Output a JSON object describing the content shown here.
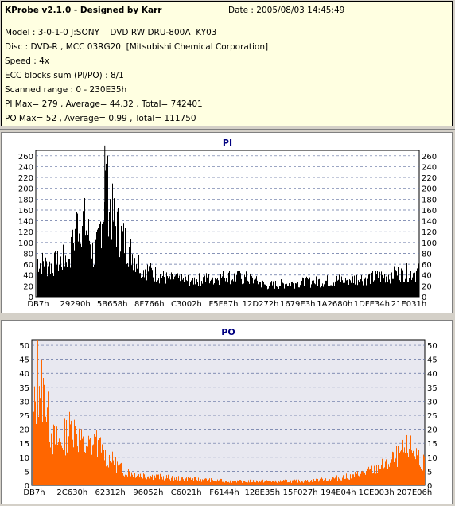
{
  "info": {
    "title": "KProbe v2.1.0 - Designed by Karr",
    "date": "Date : 2005/08/03 14:45:49",
    "lines": [
      "Model : 3-0-1-0 J:SONY    DVD RW DRU-800A  KY03",
      "Disc : DVD-R , MCC 03RG20  [Mitsubishi Chemical Corporation]",
      "Speed : 4x",
      "ECC blocks sum (PI/PO) : 8/1",
      "Scanned range : 0 - 230E35h",
      "PI Max= 279 , Average= 44.32 , Total= 742401",
      "PO Max= 52 , Average= 0.99 , Total= 111750"
    ]
  },
  "colors": {
    "pi_bars": "#000000",
    "po_bars": "#ff6600",
    "po_bg": "#e8e8f0",
    "title": "#000080"
  },
  "chart_data": [
    {
      "type": "bar",
      "title": "PI",
      "grid": true,
      "ylim": [
        0,
        270
      ],
      "yticks": [
        0,
        20,
        40,
        60,
        80,
        100,
        120,
        140,
        160,
        180,
        200,
        220,
        240,
        260
      ],
      "xtick_labels": [
        "DB7h",
        "29290h",
        "5B658h",
        "8F766h",
        "C3002h",
        "F5F87h",
        "12D272h",
        "1679E3h",
        "1A2680h",
        "1DFE34h",
        "21E031h"
      ],
      "envelope": {
        "x": [
          0,
          0.03,
          0.06,
          0.09,
          0.11,
          0.13,
          0.15,
          0.16,
          0.18,
          0.19,
          0.2,
          0.22,
          0.24,
          0.26,
          0.28,
          0.3,
          0.34,
          0.38,
          0.42,
          0.46,
          0.5,
          0.55,
          0.6,
          0.65,
          0.7,
          0.75,
          0.8,
          0.85,
          0.9,
          0.95,
          1.0
        ],
        "y": [
          90,
          75,
          85,
          110,
          200,
          170,
          95,
          130,
          279,
          230,
          190,
          150,
          120,
          90,
          70,
          60,
          45,
          40,
          42,
          45,
          50,
          45,
          28,
          32,
          35,
          38,
          42,
          45,
          50,
          58,
          60
        ]
      }
    },
    {
      "type": "bar",
      "title": "PO",
      "grid": true,
      "ylim": [
        0,
        52
      ],
      "yticks": [
        0,
        5,
        10,
        15,
        20,
        25,
        30,
        35,
        40,
        45,
        50
      ],
      "xtick_labels": [
        "DB7h",
        "2C630h",
        "62312h",
        "96052h",
        "C6021h",
        "F6144h",
        "128E35h",
        "15F027h",
        "194E04h",
        "1CE003h",
        "207E06h"
      ],
      "envelope": {
        "x": [
          0,
          0.015,
          0.03,
          0.05,
          0.07,
          0.1,
          0.13,
          0.16,
          0.18,
          0.2,
          0.23,
          0.27,
          0.32,
          0.4,
          0.5,
          0.6,
          0.7,
          0.8,
          0.85,
          0.9,
          0.93,
          0.96,
          0.98,
          1.0
        ],
        "y": [
          30,
          52,
          40,
          22,
          20,
          28,
          18,
          20,
          15,
          12,
          7,
          5,
          4,
          3,
          2,
          2,
          2,
          4,
          6,
          10,
          14,
          18,
          15,
          10
        ]
      }
    }
  ]
}
